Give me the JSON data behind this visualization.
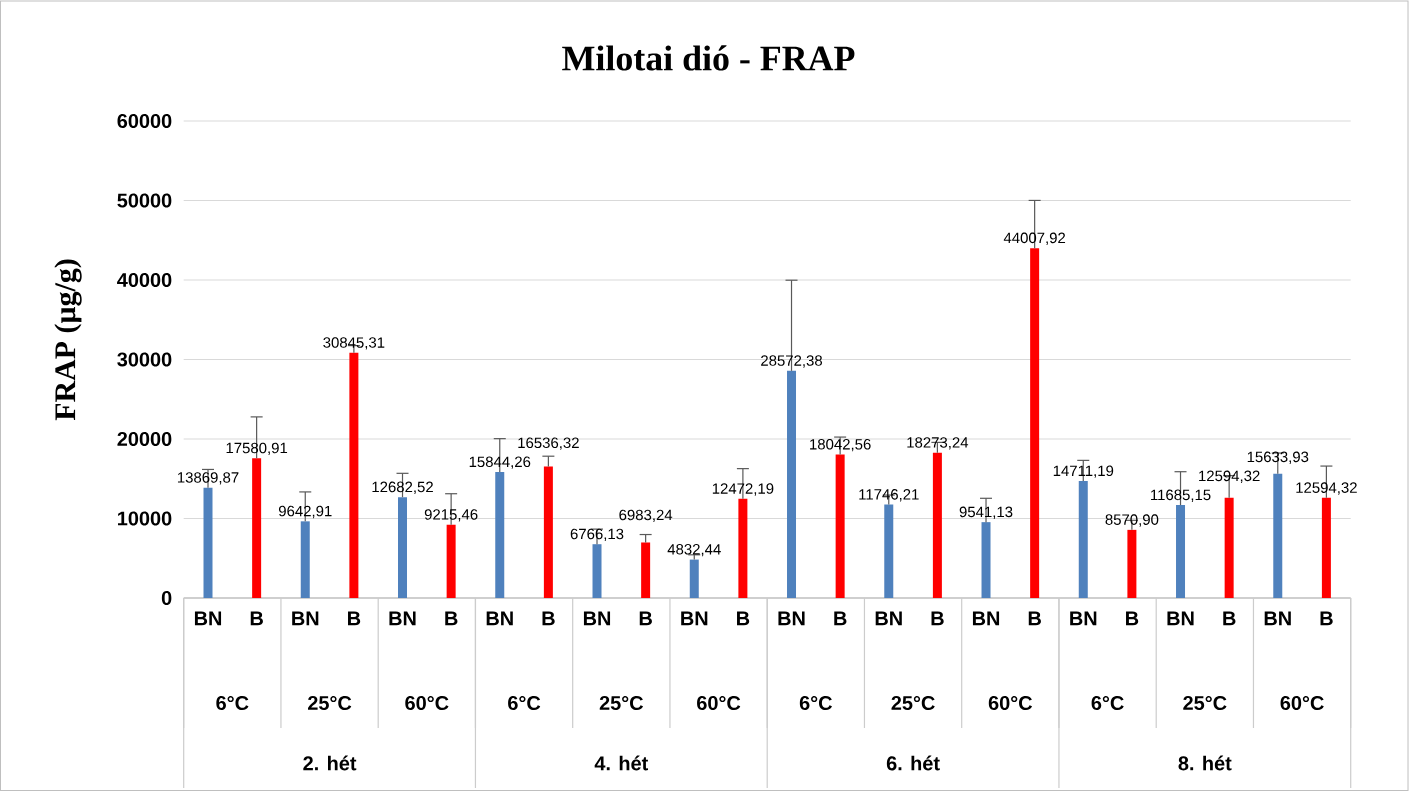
{
  "chart_data": {
    "type": "bar",
    "title": "Milotai dió - FRAP",
    "ylabel": "FRAP (µg/g)",
    "categories": [
      "BN",
      "B",
      "BN",
      "B",
      "BN",
      "B",
      "BN",
      "B",
      "BN",
      "B",
      "BN",
      "B",
      "BN",
      "B",
      "BN",
      "B",
      "BN",
      "B",
      "BN",
      "B",
      "BN",
      "B",
      "BN",
      "B"
    ],
    "values": [
      13869.87,
      17580.91,
      9642.91,
      30845.31,
      12682.52,
      9215.46,
      15844.26,
      16536.32,
      6766.13,
      6983.24,
      4832.44,
      12472.19,
      28572.38,
      18042.56,
      11746.21,
      18273.24,
      9541.13,
      44007.92,
      14711.19,
      8570.9,
      11685.15,
      12594.32,
      15633.93,
      12594.32
    ],
    "colors": [
      "#4f81bd",
      "#ff0000",
      "#4f81bd",
      "#ff0000",
      "#4f81bd",
      "#ff0000",
      "#4f81bd",
      "#ff0000",
      "#4f81bd",
      "#ff0000",
      "#4f81bd",
      "#ff0000",
      "#4f81bd",
      "#ff0000",
      "#4f81bd",
      "#ff0000",
      "#4f81bd",
      "#ff0000",
      "#4f81bd",
      "#ff0000",
      "#4f81bd",
      "#ff0000",
      "#4f81bd",
      "#ff0000"
    ],
    "errors": [
      2300,
      5200,
      3700,
      900,
      3000,
      3900,
      4200,
      1300,
      1900,
      1000,
      600,
      3800,
      11400,
      2200,
      1200,
      1300,
      3000,
      6000,
      2600,
      1200,
      4200,
      2800,
      2600,
      4000
    ],
    "value_labels": [
      "13869,87",
      "17580,91",
      "9642,91",
      "30845,31",
      "12682,52",
      "9215,46",
      "15844,26",
      "16536,32",
      "6766,13",
      "6983,24",
      "4832,44",
      "12472,19",
      "28572,38",
      "18042,56",
      "11746,21",
      "18273,24",
      "9541,13",
      "44007,92",
      "14711,19",
      "8570,90",
      "11685,15",
      "12594,32",
      "15633,93",
      "12594,32"
    ],
    "annotations": [
      "6°C",
      "25°C",
      "60°C",
      "6°C",
      "25°C",
      "60°C",
      "6°C",
      "25°C",
      "60°C",
      "6°C",
      "25°C",
      "60°C",
      "2. hét",
      "4. hét",
      "6. hét",
      "8. hét"
    ],
    "ylim": [
      0,
      60000
    ],
    "yticks": [
      0,
      10000,
      20000,
      30000,
      40000,
      50000,
      60000
    ],
    "grid": "y"
  }
}
